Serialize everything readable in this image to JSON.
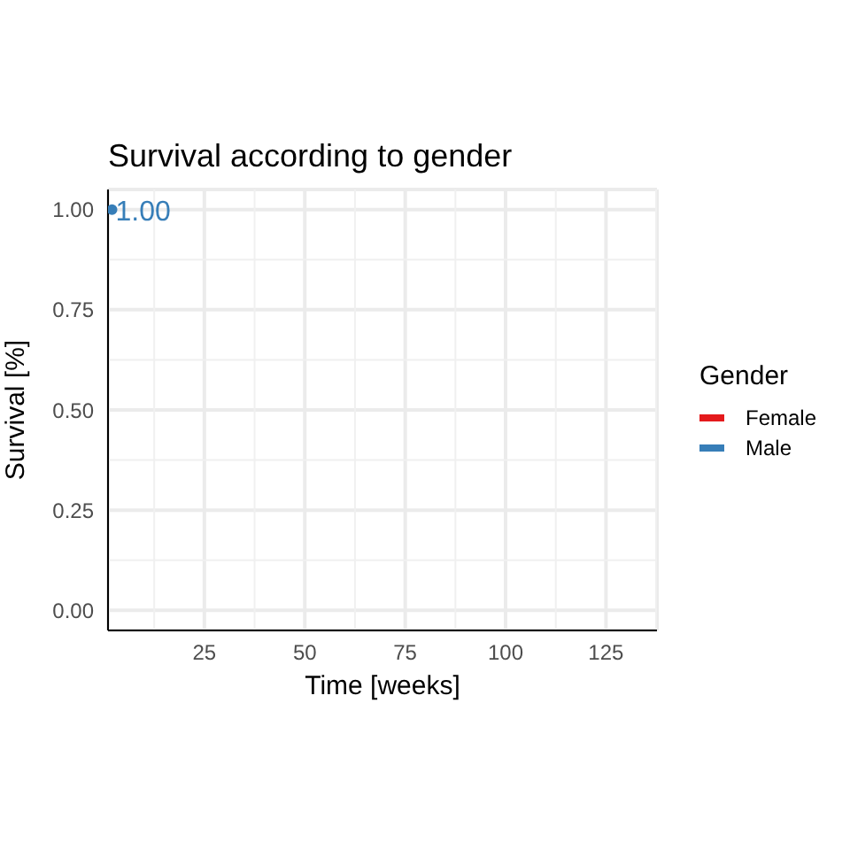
{
  "chart_data": {
    "type": "step",
    "title": "Survival according to gender",
    "xlabel": "Time [weeks]",
    "ylabel": "Survival [%]",
    "legend_title": "Gender",
    "series": [
      {
        "name": "Female",
        "color": "#e41a1c"
      },
      {
        "name": "Male",
        "color": "#377eb8",
        "x": [
          2
        ],
        "values": [
          1
        ]
      }
    ],
    "annotations": [
      {
        "text": "1.00",
        "x": 2,
        "y": 1
      }
    ],
    "xlim": [
      1,
      137.7
    ],
    "xticks": [
      25,
      50,
      75,
      100,
      125
    ],
    "ylim": [
      -0.05,
      1.05
    ],
    "yticks": [
      {
        "value": 0,
        "label": "0.00"
      },
      {
        "value": 0.25,
        "label": "0.25"
      },
      {
        "value": 0.5,
        "label": "0.50"
      },
      {
        "value": 0.75,
        "label": "0.75"
      },
      {
        "value": 1,
        "label": "1.00"
      }
    ],
    "grid": true,
    "legend": "right",
    "marker": "circle"
  }
}
